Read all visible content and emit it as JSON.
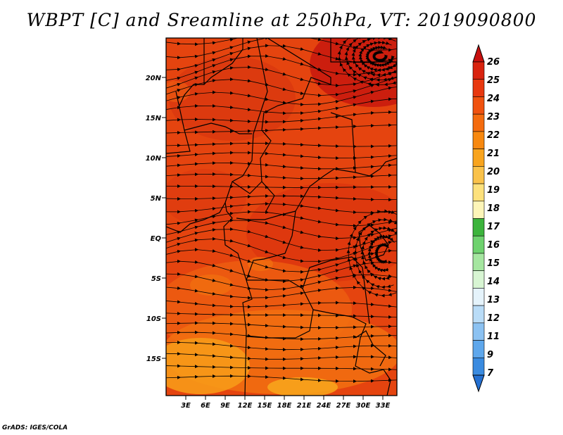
{
  "title": "WBPT [C] and Sreamline at 250hPa, VT: 2019090800",
  "credit": "GrADS: IGES/COLA",
  "map": {
    "lat_labels": [
      "20N",
      "15N",
      "10N",
      "5N",
      "EQ",
      "5S",
      "10S",
      "15S"
    ],
    "lon_labels": [
      "3E",
      "6E",
      "9E",
      "12E",
      "15E",
      "18E",
      "21E",
      "24E",
      "27E",
      "30E",
      "33E"
    ]
  },
  "colorbar": {
    "labels": [
      "26",
      "25",
      "24",
      "23",
      "22",
      "21",
      "20",
      "19",
      "18",
      "17",
      "16",
      "15",
      "14",
      "13",
      "12",
      "11",
      "9",
      "7"
    ],
    "colors": [
      "#c8100e",
      "#d9230f",
      "#e8380f",
      "#f0520f",
      "#f46b0e",
      "#f7880f",
      "#f8a41e",
      "#fac24a",
      "#fde17c",
      "#fdf5b8",
      "#3cb43c",
      "#6ed26e",
      "#a5e6a0",
      "#d8f5d3",
      "#e5f3fb",
      "#b9dcf7",
      "#8cc2f2",
      "#5ea7ec",
      "#3a8be0",
      "#2470d2"
    ]
  }
}
